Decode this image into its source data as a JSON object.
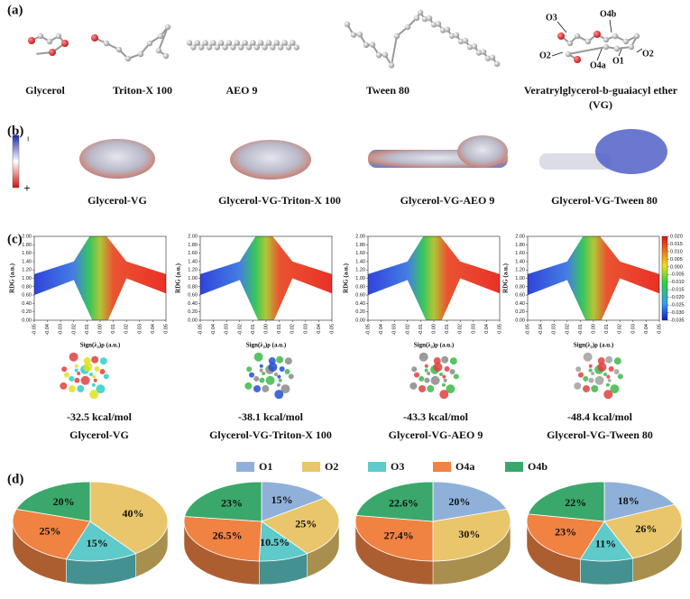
{
  "panel_labels": [
    "(a)",
    "(b)",
    "(c)",
    "(d)"
  ],
  "molecules": [
    "Glycerol",
    "Triton-X 100",
    "AEO 9",
    "Tween 80",
    "Veratrylglycerol-b-guaiacyl ether",
    "(VG)"
  ],
  "atom_labels": [
    "O3",
    "O4b",
    "O2",
    "O4a",
    "O1",
    "O2"
  ],
  "esp": {
    "colorbar_labels": [
      "−",
      "+"
    ],
    "complexes": [
      "Glycerol-VG",
      "Glycerol-VG-Triton-X 100",
      "Glycerol-VG-AEO 9",
      "Glycerol-VG-Tween 80"
    ]
  },
  "rdg": {
    "x_label": "Sign(λ₂)ρ (a.u.)",
    "y_label": "RDG (a.u.)",
    "xlim": [
      -0.05,
      0.05
    ],
    "xticks": [
      -0.05,
      -0.04,
      -0.03,
      -0.02,
      -0.01,
      {
        "value": 0,
        "label": "0.00"
      },
      0.01,
      0.02,
      0.03,
      0.04,
      0.05
    ],
    "ylim": [
      0,
      2
    ],
    "yticks": [
      {
        "value": 0,
        "label": "0.00"
      },
      {
        "value": 0.2,
        "label": "0.20"
      },
      {
        "value": 0.4,
        "label": "0.40"
      },
      {
        "value": 0.6,
        "label": "0.60"
      },
      {
        "value": 0.8,
        "label": "0.80"
      },
      {
        "value": 1,
        "label": "1.00"
      },
      {
        "value": 1.2,
        "label": "1.20"
      },
      {
        "value": 1.4,
        "label": "1.40"
      },
      {
        "value": 1.6,
        "label": "1.60"
      },
      {
        "value": 1.8,
        "label": "1.80"
      },
      {
        "value": 2,
        "label": "2.00"
      }
    ],
    "colorbar_lim": [
      -0.035,
      0.02
    ],
    "colorbar_ticks": [
      {
        "value": 0.02,
        "label": "0.020"
      },
      0.015,
      {
        "value": 0.01,
        "label": "0.010"
      },
      0.005,
      {
        "value": 0,
        "label": "0.000"
      },
      -0.005,
      {
        "value": -0.01,
        "label": "-0.010"
      },
      -0.015,
      {
        "value": -0.02,
        "label": "-0.020"
      },
      -0.025,
      {
        "value": -0.03,
        "label": "-0.030"
      },
      -0.035
    ]
  },
  "interaction_energies": [
    "-32.5 kcal/mol",
    "-38.1 kcal/mol",
    "-43.3 kcal/mol",
    "-48.4 kcal/mol"
  ],
  "chart_data": [
    {
      "type": "pie",
      "categories": [
        "O1",
        "O2",
        "O3",
        "O4a",
        "O4b"
      ],
      "colors": [
        "#8fb1d9",
        "#e9c66b",
        "#5ecaca",
        "#f08242",
        "#3aa86b"
      ],
      "values": [
        0,
        40,
        15,
        25,
        20
      ],
      "value_labels": [
        null,
        "40%",
        "15%",
        "25%",
        "20%"
      ]
    },
    {
      "type": "pie",
      "categories": [
        "O1",
        "O2",
        "O3",
        "O4a",
        "O4b"
      ],
      "colors": [
        "#8fb1d9",
        "#e9c66b",
        "#5ecaca",
        "#f08242",
        "#3aa86b"
      ],
      "values": [
        15,
        25,
        10.5,
        26.5,
        23
      ],
      "value_labels": [
        "15%",
        "25%",
        "10.5%",
        "26.5%",
        "23%"
      ]
    },
    {
      "type": "pie",
      "categories": [
        "O1",
        "O2",
        "O3",
        "O4a",
        "O4b"
      ],
      "colors": [
        "#8fb1d9",
        "#e9c66b",
        "#5ecaca",
        "#f08242",
        "#3aa86b"
      ],
      "values": [
        20,
        30,
        0,
        27.4,
        22.6
      ],
      "value_labels": [
        "20%",
        "30%",
        null,
        "27.4%",
        "22.6%"
      ]
    },
    {
      "type": "pie",
      "categories": [
        "O1",
        "O2",
        "O3",
        "O4a",
        "O4b"
      ],
      "colors": [
        "#8fb1d9",
        "#e9c66b",
        "#5ecaca",
        "#f08242",
        "#3aa86b"
      ],
      "values": [
        18,
        26,
        11,
        23,
        22
      ],
      "value_labels": [
        "18%",
        "26%",
        "11%",
        "23%",
        "22%"
      ]
    }
  ]
}
